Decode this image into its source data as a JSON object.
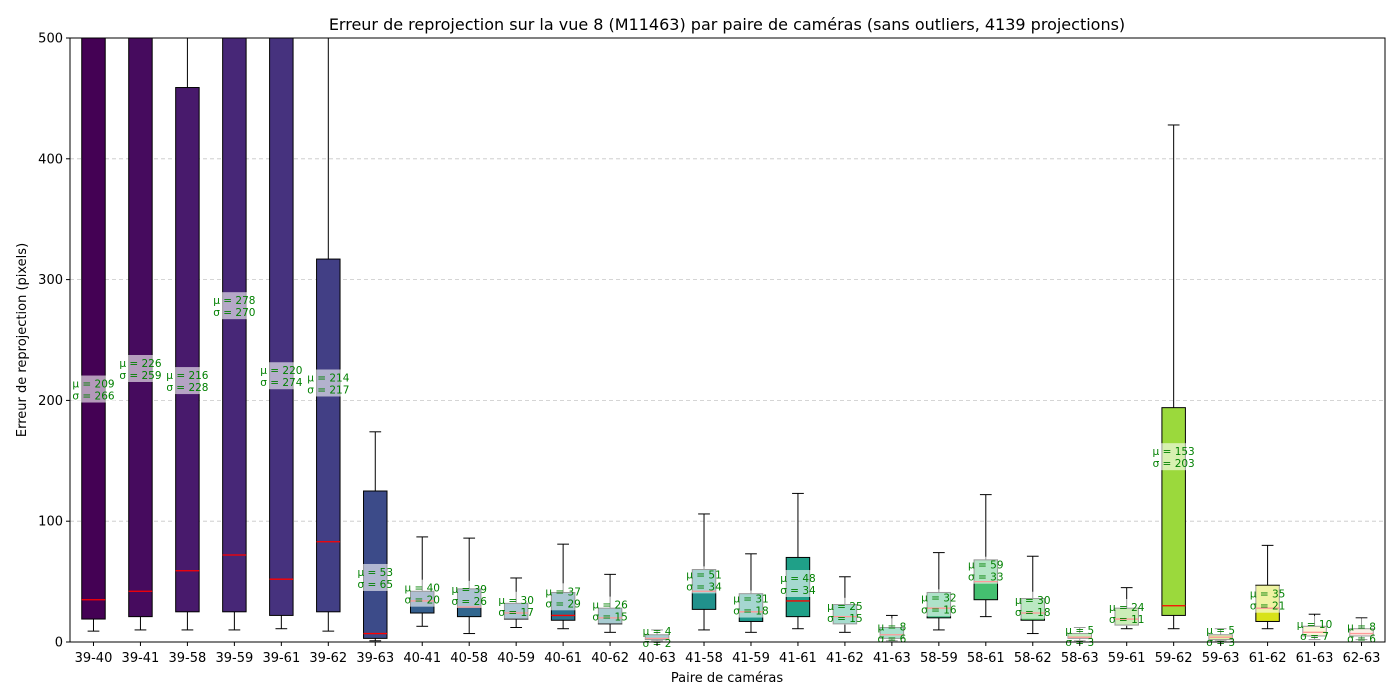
{
  "chart_data": {
    "type": "box",
    "title": "Erreur de reprojection sur la vue 8 (M11463) par paire de caméras (sans outliers, 4139 projections)",
    "xlabel": "Paire de caméras",
    "ylabel": "Erreur de reprojection (pixels)",
    "ylim": [
      0,
      500
    ],
    "yticks": [
      0,
      100,
      200,
      300,
      400,
      500
    ],
    "grid": "horizontal dashed",
    "median_color": "#ff0000",
    "stat_label_color": "#008000",
    "boxes": [
      {
        "label": "39-40",
        "whislo": 9,
        "q1": 19,
        "med": 35,
        "q3": 500,
        "whishi": 500,
        "mean_label": "µ = 209",
        "std_label": "σ = 266",
        "color": "#440154"
      },
      {
        "label": "39-41",
        "whislo": 10,
        "q1": 21,
        "med": 42,
        "q3": 500,
        "whishi": 500,
        "mean_label": "µ = 226",
        "std_label": "σ = 259",
        "color": "#460b5e"
      },
      {
        "label": "39-58",
        "whislo": 10,
        "q1": 25,
        "med": 59,
        "q3": 459,
        "whishi": 500,
        "mean_label": "µ = 216",
        "std_label": "σ = 228",
        "color": "#481a6c"
      },
      {
        "label": "39-59",
        "whislo": 10,
        "q1": 25,
        "med": 72,
        "q3": 500,
        "whishi": 500,
        "mean_label": "µ = 278",
        "std_label": "σ = 270",
        "color": "#472777"
      },
      {
        "label": "39-61",
        "whislo": 11,
        "q1": 22,
        "med": 52,
        "q3": 500,
        "whishi": 500,
        "mean_label": "µ = 220",
        "std_label": "σ = 274",
        "color": "#46327e"
      },
      {
        "label": "39-62",
        "whislo": 9,
        "q1": 25,
        "med": 83,
        "q3": 317,
        "whishi": 500,
        "mean_label": "µ = 214",
        "std_label": "σ = 217",
        "color": "#423f85"
      },
      {
        "label": "39-63",
        "whislo": 1,
        "q1": 3,
        "med": 7,
        "q3": 125,
        "whishi": 174,
        "mean_label": "µ = 53",
        "std_label": "σ = 65",
        "color": "#3c4b89"
      },
      {
        "label": "40-41",
        "whislo": 13,
        "q1": 24,
        "med": 34,
        "q3": 42,
        "whishi": 87,
        "mean_label": "µ = 40",
        "std_label": "σ = 20",
        "color": "#355e8d"
      },
      {
        "label": "40-58",
        "whislo": 7,
        "q1": 21,
        "med": 29,
        "q3": 44,
        "whishi": 86,
        "mean_label": "µ = 39",
        "std_label": "σ = 26",
        "color": "#31668e"
      },
      {
        "label": "40-59",
        "whislo": 12,
        "q1": 19,
        "med": 24,
        "q3": 32,
        "whishi": 53,
        "mean_label": "µ = 30",
        "std_label": "σ = 17",
        "color": "#2e6e8e"
      },
      {
        "label": "40-61",
        "whislo": 11,
        "q1": 18,
        "med": 22,
        "q3": 41,
        "whishi": 81,
        "mean_label": "µ = 37",
        "std_label": "σ = 29",
        "color": "#2c738e"
      },
      {
        "label": "40-62",
        "whislo": 8,
        "q1": 15,
        "med": 20,
        "q3": 28,
        "whishi": 56,
        "mean_label": "µ = 26",
        "std_label": "σ = 15",
        "color": "#277f8e"
      },
      {
        "label": "40-63",
        "whislo": 1,
        "q1": 2,
        "med": 3,
        "q3": 6,
        "whishi": 10,
        "mean_label": "µ = 4",
        "std_label": "σ = 2",
        "color": "#24868e"
      },
      {
        "label": "41-58",
        "whislo": 10,
        "q1": 27,
        "med": 42,
        "q3": 60,
        "whishi": 106,
        "mean_label": "µ = 51",
        "std_label": "σ = 34",
        "color": "#21918c"
      },
      {
        "label": "41-59",
        "whislo": 8,
        "q1": 17,
        "med": 25,
        "q3": 40,
        "whishi": 73,
        "mean_label": "µ = 31",
        "std_label": "σ = 18",
        "color": "#1f988b"
      },
      {
        "label": "41-61",
        "whislo": 11,
        "q1": 21,
        "med": 34,
        "q3": 70,
        "whishi": 123,
        "mean_label": "µ = 48",
        "std_label": "σ = 34",
        "color": "#1fa088"
      },
      {
        "label": "41-62",
        "whislo": 8,
        "q1": 15,
        "med": 21,
        "q3": 31,
        "whishi": 54,
        "mean_label": "µ = 25",
        "std_label": "σ = 15",
        "color": "#22a884"
      },
      {
        "label": "41-63",
        "whislo": 1,
        "q1": 3,
        "med": 6,
        "q3": 12,
        "whishi": 22,
        "mean_label": "µ = 8",
        "std_label": "σ = 6",
        "color": "#2ab07f"
      },
      {
        "label": "58-59",
        "whislo": 10,
        "q1": 20,
        "med": 28,
        "q3": 41,
        "whishi": 74,
        "mean_label": "µ = 32",
        "std_label": "σ = 16",
        "color": "#35b779"
      },
      {
        "label": "58-61",
        "whislo": 21,
        "q1": 35,
        "med": 50,
        "q3": 68,
        "whishi": 122,
        "mean_label": "µ = 59",
        "std_label": "σ = 33",
        "color": "#44bf70"
      },
      {
        "label": "58-62",
        "whislo": 7,
        "q1": 18,
        "med": 24,
        "q3": 36,
        "whishi": 71,
        "mean_label": "µ = 30",
        "std_label": "σ = 18",
        "color": "#54c568"
      },
      {
        "label": "58-63",
        "whislo": 1,
        "q1": 3,
        "med": 4,
        "q3": 7,
        "whishi": 12,
        "mean_label": "µ = 5",
        "std_label": "σ = 3",
        "color": "#6ccd5a"
      },
      {
        "label": "59-61",
        "whislo": 11,
        "q1": 14,
        "med": 19,
        "q3": 28,
        "whishi": 45,
        "mean_label": "µ = 24",
        "std_label": "σ = 11",
        "color": "#7fd34e"
      },
      {
        "label": "59-62",
        "whislo": 11,
        "q1": 22,
        "med": 30,
        "q3": 194,
        "whishi": 428,
        "mean_label": "µ = 153",
        "std_label": "σ = 203",
        "color": "#9bd93c"
      },
      {
        "label": "59-63",
        "whislo": 1,
        "q1": 2,
        "med": 4,
        "q3": 6,
        "whishi": 11,
        "mean_label": "µ = 5",
        "std_label": "σ = 3",
        "color": "#b2dd2d"
      },
      {
        "label": "61-62",
        "whislo": 11,
        "q1": 17,
        "med": 28,
        "q3": 47,
        "whishi": 80,
        "mean_label": "µ = 35",
        "std_label": "σ = 21",
        "color": "#d8e219"
      },
      {
        "label": "61-63",
        "whislo": 2,
        "q1": 5,
        "med": 8,
        "q3": 13,
        "whishi": 23,
        "mean_label": "µ = 10",
        "std_label": "σ = 7",
        "color": "#f6e9a6"
      },
      {
        "label": "62-63",
        "whislo": 2,
        "q1": 5,
        "med": 7,
        "q3": 11,
        "whishi": 20,
        "mean_label": "µ = 8",
        "std_label": "σ = 6",
        "color": "#f4dcc4"
      }
    ]
  }
}
